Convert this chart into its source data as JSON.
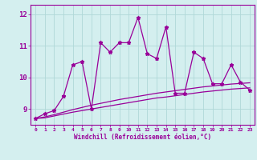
{
  "x": [
    0,
    1,
    2,
    3,
    4,
    5,
    6,
    7,
    8,
    9,
    10,
    11,
    12,
    13,
    14,
    15,
    16,
    17,
    18,
    19,
    20,
    21,
    22,
    23
  ],
  "y_main": [
    8.7,
    8.85,
    8.95,
    9.4,
    10.4,
    10.5,
    9.0,
    11.1,
    10.8,
    11.1,
    11.1,
    11.9,
    10.75,
    10.6,
    11.6,
    9.5,
    9.5,
    10.8,
    10.6,
    9.8,
    9.8,
    10.4,
    9.85,
    9.6
  ],
  "y_low": [
    8.7,
    8.72,
    8.78,
    8.84,
    8.9,
    8.95,
    9.0,
    9.05,
    9.1,
    9.15,
    9.2,
    9.25,
    9.3,
    9.35,
    9.38,
    9.42,
    9.46,
    9.5,
    9.54,
    9.57,
    9.6,
    9.63,
    9.65,
    9.67
  ],
  "y_high": [
    8.7,
    8.75,
    8.82,
    8.9,
    8.98,
    9.05,
    9.12,
    9.18,
    9.24,
    9.3,
    9.35,
    9.4,
    9.45,
    9.5,
    9.54,
    9.58,
    9.62,
    9.66,
    9.7,
    9.73,
    9.76,
    9.79,
    9.81,
    9.83
  ],
  "line_color": "#990099",
  "bg_color": "#d4efef",
  "grid_color": "#b0d8d8",
  "xlabel": "Windchill (Refroidissement éolien,°C)",
  "xlim_min": -0.5,
  "xlim_max": 23.5,
  "ylim_min": 8.5,
  "ylim_max": 12.3,
  "yticks": [
    9,
    10,
    11,
    12
  ],
  "xticks": [
    0,
    1,
    2,
    3,
    4,
    5,
    6,
    7,
    8,
    9,
    10,
    11,
    12,
    13,
    14,
    15,
    16,
    17,
    18,
    19,
    20,
    21,
    22,
    23
  ]
}
